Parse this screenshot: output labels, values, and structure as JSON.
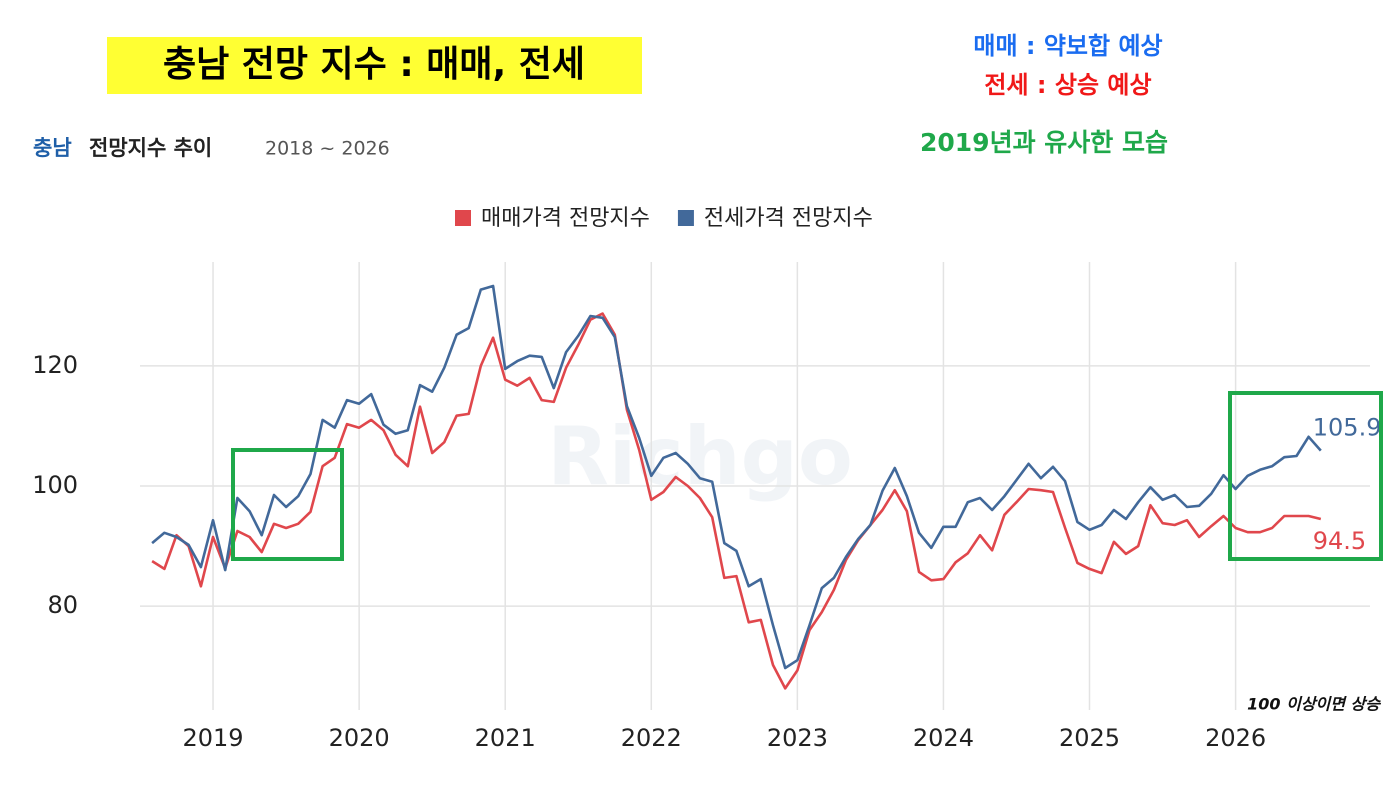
{
  "title": "충남 전망 지수 : 매매, 전세",
  "notes": [
    "매매 :  약보합 예상",
    "전세 : 상승 예상",
    "2019년과 유사한 모습"
  ],
  "chart_data": {
    "type": "line",
    "subtitle": {
      "region": "충남",
      "text": "전망지수 추이",
      "period": "2018 ~ 2026"
    },
    "watermark": "Richgo",
    "annotation": "100 이상이면 상승",
    "x": [
      2018.583,
      2018.667,
      2018.75,
      2018.833,
      2018.917,
      2019,
      2019.083,
      2019.167,
      2019.25,
      2019.333,
      2019.417,
      2019.5,
      2019.583,
      2019.667,
      2019.75,
      2019.833,
      2019.917,
      2020,
      2020.083,
      2020.167,
      2020.25,
      2020.333,
      2020.417,
      2020.5,
      2020.583,
      2020.667,
      2020.75,
      2020.833,
      2020.917,
      2021,
      2021.083,
      2021.167,
      2021.25,
      2021.333,
      2021.417,
      2021.5,
      2021.583,
      2021.667,
      2021.75,
      2021.833,
      2021.917,
      2022,
      2022.083,
      2022.167,
      2022.25,
      2022.333,
      2022.417,
      2022.5,
      2022.583,
      2022.667,
      2022.75,
      2022.833,
      2022.917,
      2023,
      2023.083,
      2023.167,
      2023.25,
      2023.333,
      2023.417,
      2023.5,
      2023.583,
      2023.667,
      2023.75,
      2023.833,
      2023.917,
      2024,
      2024.083,
      2024.167,
      2024.25,
      2024.333,
      2024.417,
      2024.5,
      2024.583,
      2024.667,
      2024.75,
      2024.833,
      2024.917,
      2025,
      2025.083,
      2025.167,
      2025.25,
      2025.333,
      2025.417,
      2025.5,
      2025.583,
      2025.667,
      2025.75,
      2025.833,
      2025.917,
      2026,
      2026.083,
      2026.167,
      2026.25,
      2026.333,
      2026.417,
      2026.5,
      2026.583
    ],
    "series": [
      {
        "name": "매매가격 전망지수",
        "color": "#e0474c",
        "values": [
          87.5,
          86.2,
          91.8,
          90,
          83.3,
          91.5,
          86.3,
          92.5,
          91.5,
          89,
          93.7,
          93,
          93.7,
          95.7,
          103.3,
          104.7,
          110.3,
          109.7,
          111,
          109.3,
          105.2,
          103.3,
          113.2,
          105.5,
          107.3,
          111.7,
          112,
          120,
          124.7,
          117.7,
          116.7,
          118,
          114.3,
          114,
          119.7,
          123.5,
          127.7,
          128.7,
          125.2,
          112.7,
          106,
          97.7,
          99,
          101.5,
          100,
          98,
          94.8,
          84.7,
          85,
          77.3,
          77.7,
          70.2,
          66.3,
          69.3,
          76,
          79,
          82.7,
          87.7,
          91,
          93.5,
          96,
          99.3,
          95.8,
          85.7,
          84.3,
          84.5,
          87.3,
          88.8,
          91.8,
          89.3,
          95.2,
          97.3,
          99.5,
          99.3,
          99,
          93,
          87.2,
          86.2,
          85.5,
          90.7,
          88.7,
          90,
          96.8,
          93.8,
          93.5,
          94.3,
          91.5,
          93.3,
          95,
          93,
          92.3,
          92.3,
          93,
          95,
          95,
          95,
          94.5
        ]
      },
      {
        "name": "전세가격 전망지수",
        "color": "#42699a",
        "values": [
          90.5,
          92.2,
          91.5,
          90.2,
          86.5,
          94.3,
          86,
          98,
          95.8,
          91.8,
          98.5,
          96.5,
          98.3,
          102,
          111,
          109.7,
          114.3,
          113.7,
          115.3,
          110.2,
          108.7,
          109.3,
          116.8,
          115.7,
          119.7,
          125.2,
          126.3,
          132.7,
          133.3,
          119.5,
          120.8,
          121.7,
          121.5,
          116.3,
          122.3,
          125,
          128.3,
          128,
          124.8,
          113.3,
          108,
          101.7,
          104.7,
          105.5,
          103.7,
          101.3,
          100.7,
          90.5,
          89.2,
          83.3,
          84.5,
          76.8,
          69.7,
          71,
          76.8,
          83,
          84.7,
          88.2,
          91.2,
          93.5,
          99.2,
          103,
          98.3,
          92.2,
          89.7,
          93.2,
          93.2,
          97.3,
          98,
          96,
          98.3,
          101,
          103.7,
          101.3,
          103.2,
          100.8,
          94,
          92.7,
          93.5,
          96,
          94.5,
          97.3,
          99.8,
          97.7,
          98.5,
          96.5,
          96.7,
          98.7,
          101.8,
          99.5,
          101.7,
          102.7,
          103.3,
          104.8,
          105,
          108.2,
          105.9
        ]
      }
    ],
    "xlim": [
      2018.5,
      2026.92
    ],
    "xticks": [
      2019,
      2020,
      2021,
      2022,
      2023,
      2024,
      2025,
      2026
    ],
    "ylim": [
      62.7,
      137.3
    ],
    "yticks": [
      80,
      100,
      120
    ],
    "grid": true,
    "legend": "top"
  }
}
